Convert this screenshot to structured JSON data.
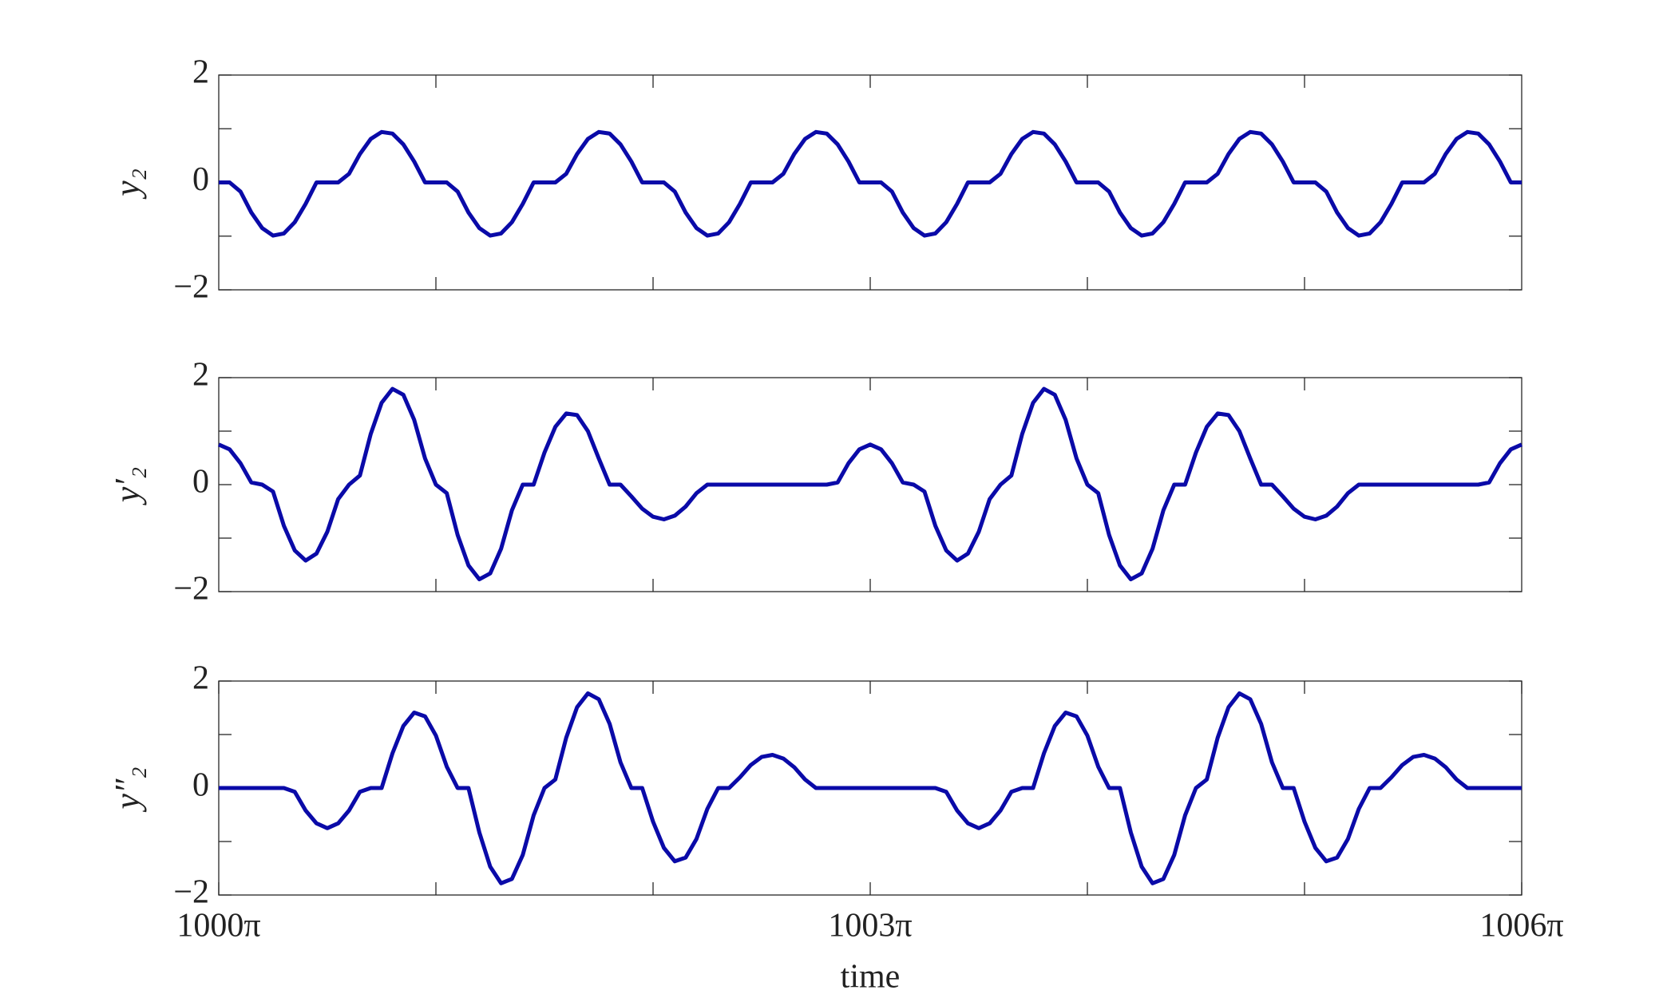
{
  "chart_data": [
    {
      "type": "line",
      "ylabel": "y₂",
      "xlim": [
        1000,
        1006
      ],
      "ylim": [
        -2,
        2
      ],
      "xticks": [
        1001,
        1002,
        1003,
        1004,
        1005
      ],
      "show_xticklabels": false,
      "yticks": [
        {
          "value": -2,
          "label": "−2"
        },
        0,
        2
      ],
      "yminor_ticks": [
        -1,
        1
      ],
      "series": [
        {
          "color": "#0a0aa8",
          "x": [
            1000,
            1000.05,
            1000.1,
            1000.15,
            1000.2,
            1000.25,
            1000.3,
            1000.35,
            1000.4,
            1000.45,
            1000.5,
            1000.55,
            1000.6,
            1000.65,
            1000.7,
            1000.75,
            1000.8,
            1000.85,
            1000.9,
            1000.95,
            1001,
            1001.05,
            1001.1,
            1001.15,
            1001.2,
            1001.25,
            1001.3,
            1001.35,
            1001.4,
            1001.45,
            1001.5,
            1001.55,
            1001.6,
            1001.65,
            1001.7,
            1001.75,
            1001.8,
            1001.85,
            1001.9,
            1001.95,
            1002,
            1002.05,
            1002.1,
            1002.15,
            1002.2,
            1002.25,
            1002.3,
            1002.35,
            1002.4,
            1002.45,
            1002.5,
            1002.55,
            1002.6,
            1002.65,
            1002.7,
            1002.75,
            1002.8,
            1002.85,
            1002.9,
            1002.95,
            1003,
            1003.05,
            1003.1,
            1003.15,
            1003.2,
            1003.25,
            1003.3,
            1003.35,
            1003.4,
            1003.45,
            1003.5,
            1003.55,
            1003.6,
            1003.65,
            1003.7,
            1003.75,
            1003.8,
            1003.85,
            1003.9,
            1003.95,
            1004,
            1004.05,
            1004.1,
            1004.15,
            1004.2,
            1004.25,
            1004.3,
            1004.35,
            1004.4,
            1004.45,
            1004.5,
            1004.55,
            1004.6,
            1004.65,
            1004.7,
            1004.75,
            1004.8,
            1004.85,
            1004.9,
            1004.95,
            1005,
            1005.05,
            1005.1,
            1005.15,
            1005.2,
            1005.25,
            1005.3,
            1005.35,
            1005.4,
            1005.45,
            1005.5,
            1005.55,
            1005.6,
            1005.65,
            1005.7,
            1005.75,
            1005.8,
            1005.85,
            1005.9,
            1005.95,
            1006
          ],
          "values": [
            0,
            0,
            -0.17,
            -0.56,
            -0.85,
            -0.99,
            -0.95,
            -0.74,
            -0.4,
            0,
            0,
            0,
            0.16,
            0.53,
            0.81,
            0.94,
            0.91,
            0.71,
            0.39,
            0,
            0,
            0,
            -0.17,
            -0.56,
            -0.85,
            -0.99,
            -0.95,
            -0.74,
            -0.4,
            0,
            0,
            0,
            0.16,
            0.53,
            0.81,
            0.94,
            0.91,
            0.71,
            0.39,
            0,
            0,
            0,
            -0.17,
            -0.56,
            -0.85,
            -0.99,
            -0.95,
            -0.74,
            -0.4,
            0,
            0,
            0,
            0.16,
            0.53,
            0.81,
            0.94,
            0.91,
            0.71,
            0.39,
            0,
            0,
            0,
            -0.17,
            -0.56,
            -0.85,
            -0.99,
            -0.95,
            -0.74,
            -0.4,
            0,
            0,
            0,
            0.16,
            0.53,
            0.81,
            0.94,
            0.91,
            0.71,
            0.39,
            0,
            0,
            0,
            -0.17,
            -0.56,
            -0.85,
            -0.99,
            -0.95,
            -0.74,
            -0.4,
            0,
            0,
            0,
            0.16,
            0.53,
            0.81,
            0.94,
            0.91,
            0.71,
            0.39,
            0,
            0,
            0,
            -0.17,
            -0.56,
            -0.85,
            -0.99,
            -0.95,
            -0.74,
            -0.4,
            0,
            0,
            0,
            0.16,
            0.53,
            0.81,
            0.94,
            0.91,
            0.71,
            0.39,
            0,
            0
          ]
        }
      ]
    },
    {
      "type": "line",
      "ylabel": "y′₂",
      "xlim": [
        1000,
        1006
      ],
      "ylim": [
        -2,
        2
      ],
      "xticks": [
        1001,
        1002,
        1003,
        1004,
        1005
      ],
      "show_xticklabels": false,
      "yticks": [
        {
          "value": -2,
          "label": "−2"
        },
        0,
        2
      ],
      "yminor_ticks": [
        -1,
        1
      ],
      "series": [
        {
          "color": "#0a0aa8",
          "x": [
            1000,
            1000.05,
            1000.1,
            1000.15,
            1000.2,
            1000.25,
            1000.3,
            1000.35,
            1000.4,
            1000.45,
            1000.5,
            1000.55,
            1000.6,
            1000.65,
            1000.7,
            1000.75,
            1000.8,
            1000.85,
            1000.9,
            1000.95,
            1001,
            1001.05,
            1001.1,
            1001.15,
            1001.2,
            1001.25,
            1001.3,
            1001.35,
            1001.4,
            1001.45,
            1001.5,
            1001.55,
            1001.6,
            1001.65,
            1001.7,
            1001.75,
            1001.8,
            1001.85,
            1001.9,
            1001.95,
            1002,
            1002.05,
            1002.1,
            1002.15,
            1002.2,
            1002.25,
            1002.3,
            1002.35,
            1002.4,
            1002.45,
            1002.5,
            1002.55,
            1002.6,
            1002.65,
            1002.7,
            1002.75,
            1002.8,
            1002.85,
            1002.9,
            1002.95,
            1003,
            1003.05,
            1003.1,
            1003.15,
            1003.2,
            1003.25,
            1003.3,
            1003.35,
            1003.4,
            1003.45,
            1003.5,
            1003.55,
            1003.6,
            1003.65,
            1003.7,
            1003.75,
            1003.8,
            1003.85,
            1003.9,
            1003.95,
            1004,
            1004.05,
            1004.1,
            1004.15,
            1004.2,
            1004.25,
            1004.3,
            1004.35,
            1004.4,
            1004.45,
            1004.5,
            1004.55,
            1004.6,
            1004.65,
            1004.7,
            1004.75,
            1004.8,
            1004.85,
            1004.9,
            1004.95,
            1005,
            1005.05,
            1005.1,
            1005.15,
            1005.2,
            1005.25,
            1005.3,
            1005.35,
            1005.4,
            1005.45,
            1005.5,
            1005.55,
            1005.6,
            1005.65,
            1005.7,
            1005.75,
            1005.8,
            1005.85,
            1005.9,
            1005.95,
            1006
          ],
          "values": [
            0.75,
            0.66,
            0.4,
            0.04,
            0,
            -0.13,
            -0.77,
            -1.23,
            -1.42,
            -1.29,
            -0.88,
            -0.27,
            0,
            0.17,
            0.95,
            1.53,
            1.79,
            1.68,
            1.21,
            0.49,
            0,
            -0.16,
            -0.94,
            -1.51,
            -1.77,
            -1.66,
            -1.2,
            -0.48,
            0,
            0,
            0.6,
            1.08,
            1.33,
            1.3,
            1,
            0.49,
            0,
            0,
            -0.22,
            -0.45,
            -0.6,
            -0.65,
            -0.58,
            -0.41,
            -0.16,
            0,
            0,
            0,
            0,
            0,
            0,
            0,
            0,
            0,
            0,
            0,
            0,
            0.04,
            0.4,
            0.66,
            0.75,
            0.66,
            0.4,
            0.04,
            0,
            -0.13,
            -0.77,
            -1.23,
            -1.42,
            -1.29,
            -0.88,
            -0.27,
            0,
            0.17,
            0.95,
            1.53,
            1.79,
            1.68,
            1.21,
            0.49,
            0,
            -0.16,
            -0.94,
            -1.51,
            -1.77,
            -1.66,
            -1.2,
            -0.48,
            0,
            0,
            0.6,
            1.08,
            1.33,
            1.3,
            1,
            0.49,
            0,
            0,
            -0.22,
            -0.45,
            -0.6,
            -0.65,
            -0.58,
            -0.41,
            -0.16,
            0,
            0,
            0,
            0,
            0,
            0,
            0,
            0,
            0,
            0,
            0,
            0,
            0.04,
            0.4,
            0.66,
            0.75
          ]
        }
      ]
    },
    {
      "type": "line",
      "ylabel": "y″₂",
      "xlabel": "time",
      "xlim": [
        1000,
        1006
      ],
      "ylim": [
        -2,
        2
      ],
      "xticks": [
        {
          "value": 1000,
          "label": "1000π"
        },
        {
          "value": 1003,
          "label": "1003π"
        },
        {
          "value": 1006,
          "label": "1006π"
        }
      ],
      "xminor_ticks": [
        1001,
        1002,
        1004,
        1005
      ],
      "yticks": [
        {
          "value": -2,
          "label": "−2"
        },
        0,
        2
      ],
      "yminor_ticks": [
        -1,
        1
      ],
      "series": [
        {
          "color": "#0a0aa8",
          "x": [
            1000,
            1000.05,
            1000.1,
            1000.15,
            1000.2,
            1000.25,
            1000.3,
            1000.35,
            1000.4,
            1000.45,
            1000.5,
            1000.55,
            1000.6,
            1000.65,
            1000.7,
            1000.75,
            1000.8,
            1000.85,
            1000.9,
            1000.95,
            1001,
            1001.05,
            1001.1,
            1001.15,
            1001.2,
            1001.25,
            1001.3,
            1001.35,
            1001.4,
            1001.45,
            1001.5,
            1001.55,
            1001.6,
            1001.65,
            1001.7,
            1001.75,
            1001.8,
            1001.85,
            1001.9,
            1001.95,
            1002,
            1002.05,
            1002.1,
            1002.15,
            1002.2,
            1002.25,
            1002.3,
            1002.35,
            1002.4,
            1002.45,
            1002.5,
            1002.55,
            1002.6,
            1002.65,
            1002.7,
            1002.75,
            1002.8,
            1002.85,
            1002.9,
            1002.95,
            1003,
            1003.05,
            1003.1,
            1003.15,
            1003.2,
            1003.25,
            1003.3,
            1003.35,
            1003.4,
            1003.45,
            1003.5,
            1003.55,
            1003.6,
            1003.65,
            1003.7,
            1003.75,
            1003.8,
            1003.85,
            1003.9,
            1003.95,
            1004,
            1004.05,
            1004.1,
            1004.15,
            1004.2,
            1004.25,
            1004.3,
            1004.35,
            1004.4,
            1004.45,
            1004.5,
            1004.55,
            1004.6,
            1004.65,
            1004.7,
            1004.75,
            1004.8,
            1004.85,
            1004.9,
            1004.95,
            1005,
            1005.05,
            1005.1,
            1005.15,
            1005.2,
            1005.25,
            1005.3,
            1005.35,
            1005.4,
            1005.45,
            1005.5,
            1005.55,
            1005.6,
            1005.65,
            1005.7,
            1005.75,
            1005.8,
            1005.85,
            1005.9,
            1005.95,
            1006
          ],
          "values": [
            0,
            0,
            0,
            0,
            0,
            0,
            0,
            -0.07,
            -0.42,
            -0.66,
            -0.75,
            -0.66,
            -0.42,
            -0.07,
            0,
            0,
            0.65,
            1.16,
            1.41,
            1.34,
            0.98,
            0.4,
            0,
            0,
            -0.83,
            -1.47,
            -1.78,
            -1.7,
            -1.25,
            -0.51,
            0,
            0.16,
            0.94,
            1.51,
            1.77,
            1.66,
            1.2,
            0.48,
            0,
            0,
            -0.63,
            -1.12,
            -1.37,
            -1.3,
            -0.95,
            -0.39,
            0,
            0,
            0.2,
            0.43,
            0.58,
            0.62,
            0.55,
            0.39,
            0.16,
            0,
            0,
            0,
            0,
            0,
            0,
            0,
            0,
            0,
            0,
            0,
            0,
            -0.07,
            -0.42,
            -0.66,
            -0.75,
            -0.66,
            -0.42,
            -0.07,
            0,
            0,
            0.65,
            1.16,
            1.41,
            1.34,
            0.98,
            0.4,
            0,
            0,
            -0.83,
            -1.47,
            -1.78,
            -1.7,
            -1.25,
            -0.51,
            0,
            0.16,
            0.94,
            1.51,
            1.77,
            1.66,
            1.2,
            0.48,
            0,
            0,
            -0.63,
            -1.12,
            -1.37,
            -1.3,
            -0.95,
            -0.39,
            0,
            0,
            0.2,
            0.43,
            0.58,
            0.62,
            0.55,
            0.39,
            0.16,
            0,
            0,
            0,
            0,
            0,
            0
          ]
        }
      ]
    }
  ]
}
